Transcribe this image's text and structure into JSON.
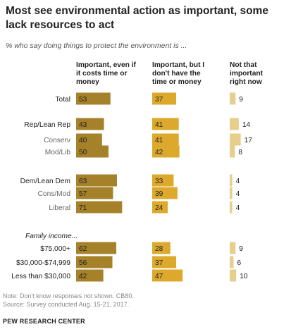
{
  "title": "Most see environmental action as important, some lack resources to act",
  "subtitle": "% who say doing things to protect the environment is ...",
  "footer": {
    "note": "Note: Don't know responses not shown. CB80.",
    "source": "Source: Survey conducted Aug. 15-21, 2017.",
    "brand": "PEW RESEARCH CENTER"
  },
  "colors": {
    "important_even_if": "#a5822a",
    "important_but": "#dca92c",
    "not_that_important": "#e6cf8c"
  },
  "chart_data": {
    "type": "bar",
    "columns": [
      {
        "key": "important_even_if",
        "label_lines": [
          "Important, even if",
          "it costs time or",
          "money"
        ]
      },
      {
        "key": "important_but",
        "label_lines": [
          "Important, but I",
          "don't have the",
          "time or money"
        ]
      },
      {
        "key": "not_that_important",
        "label_lines": [
          "Not that",
          "important",
          "right now"
        ]
      }
    ],
    "group_headers": [
      {
        "text": "Family income...",
        "before_row": 7
      }
    ],
    "rows": [
      {
        "label": "Total",
        "style": "main",
        "values": [
          53,
          37,
          9
        ]
      },
      {
        "label": "Rep/Lean Rep",
        "style": "main",
        "values": [
          43,
          41,
          14
        ]
      },
      {
        "label": "Conserv",
        "style": "sub",
        "values": [
          40,
          41,
          17
        ]
      },
      {
        "label": "Mod/Lib",
        "style": "sub",
        "values": [
          50,
          42,
          8
        ]
      },
      {
        "label": "Dem/Lean Dem",
        "style": "main",
        "values": [
          63,
          33,
          4
        ]
      },
      {
        "label": "Cons/Mod",
        "style": "sub",
        "values": [
          57,
          39,
          4
        ]
      },
      {
        "label": "Liberal",
        "style": "sub",
        "values": [
          71,
          24,
          4
        ]
      },
      {
        "label": "$75,000+",
        "style": "main",
        "values": [
          62,
          28,
          9
        ]
      },
      {
        "label": "$30,000-$74,999",
        "style": "main",
        "values": [
          56,
          37,
          6
        ]
      },
      {
        "label": "Less than $30,000",
        "style": "main",
        "values": [
          42,
          47,
          10
        ]
      }
    ]
  }
}
